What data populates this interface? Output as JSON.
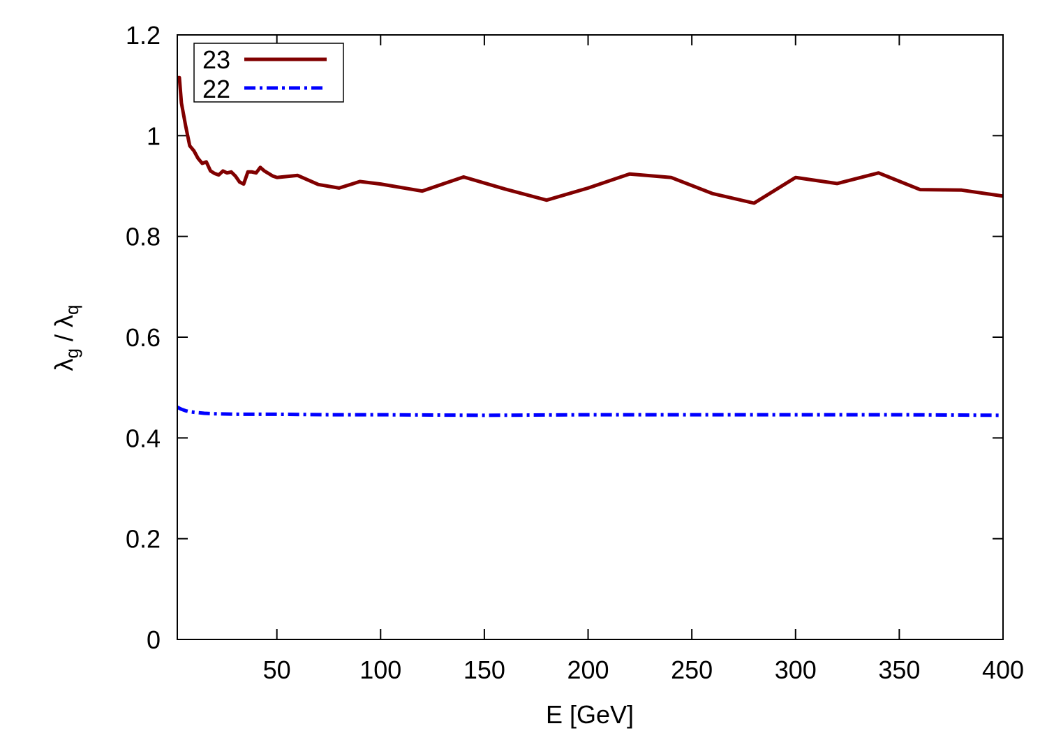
{
  "chart_data": {
    "type": "line",
    "xlabel": "E [GeV]",
    "ylabel": {
      "symbol": "λ",
      "num_sub": "g",
      "separator": " / ",
      "den_sub": "q"
    },
    "xlim": [
      2,
      400
    ],
    "ylim": [
      0,
      1.2
    ],
    "xticks": [
      50,
      100,
      150,
      200,
      250,
      300,
      350,
      400
    ],
    "yticks": [
      0,
      0.2,
      0.4,
      0.6,
      0.8,
      1,
      1.2
    ],
    "xtick_labels": [
      "50",
      "100",
      "150",
      "200",
      "250",
      "300",
      "350",
      "400"
    ],
    "ytick_labels": [
      "0",
      "0.2",
      "0.4",
      "0.6",
      "0.8",
      "1",
      "1.2"
    ],
    "grid": false,
    "legend_position": "top-left",
    "series": [
      {
        "name": "23",
        "color": "#800000",
        "style": "solid",
        "x": [
          2,
          3,
          4,
          6,
          8,
          10,
          12,
          14,
          16,
          18,
          20,
          22,
          24,
          26,
          28,
          30,
          32,
          34,
          36,
          38,
          40,
          42,
          44,
          46,
          48,
          50,
          60,
          70,
          80,
          90,
          100,
          120,
          140,
          160,
          180,
          200,
          220,
          240,
          260,
          280,
          300,
          320,
          340,
          360,
          380,
          400
        ],
        "y": [
          1.115,
          1.115,
          1.065,
          1.02,
          0.98,
          0.97,
          0.955,
          0.945,
          0.948,
          0.93,
          0.925,
          0.922,
          0.93,
          0.926,
          0.928,
          0.92,
          0.908,
          0.904,
          0.928,
          0.928,
          0.926,
          0.937,
          0.93,
          0.925,
          0.92,
          0.917,
          0.921,
          0.903,
          0.896,
          0.909,
          0.904,
          0.89,
          0.918,
          0.894,
          0.872,
          0.896,
          0.924,
          0.917,
          0.885,
          0.866,
          0.917,
          0.905,
          0.926,
          0.893,
          0.892,
          0.88
        ]
      },
      {
        "name": "22",
        "color": "#0000ff",
        "style": "dash-dot",
        "x": [
          2,
          4,
          6,
          8,
          10,
          15,
          20,
          30,
          40,
          50,
          75,
          100,
          150,
          200,
          250,
          300,
          350,
          400
        ],
        "y": [
          0.461,
          0.457,
          0.454,
          0.452,
          0.451,
          0.449,
          0.448,
          0.447,
          0.447,
          0.447,
          0.446,
          0.446,
          0.445,
          0.446,
          0.446,
          0.446,
          0.446,
          0.445
        ]
      }
    ]
  }
}
